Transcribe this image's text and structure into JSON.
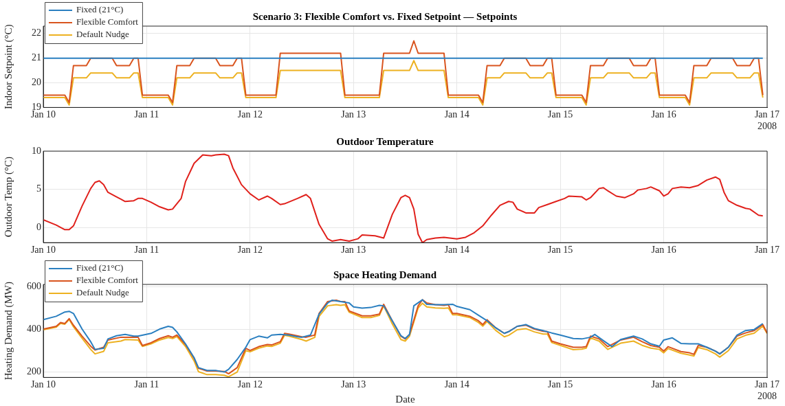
{
  "chart_data": [
    {
      "type": "line",
      "title": "Scenario 3: Flexible Comfort vs. Fixed Setpoint — Setpoints",
      "ylabel": "Indoor Setpoint (°C)",
      "legend": "top left",
      "grid": true,
      "marker": "none",
      "line_style": "solid",
      "xlim": [
        "2008-01-10",
        "2008-01-17"
      ],
      "xticks": [
        {
          "value": "2008-01-10",
          "label": "Jan 10"
        },
        {
          "value": "2008-01-11",
          "label": "Jan 11"
        },
        {
          "value": "2008-01-12",
          "label": "Jan 12"
        },
        {
          "value": "2008-01-13",
          "label": "Jan 13"
        },
        {
          "value": "2008-01-14",
          "label": "Jan 14"
        },
        {
          "value": "2008-01-15",
          "label": "Jan 15"
        },
        {
          "value": "2008-01-16",
          "label": "Jan 16"
        },
        {
          "value": "2008-01-17",
          "label": "Jan 17\n2008"
        }
      ],
      "ylim": [
        19,
        22.3
      ],
      "yticks": [
        19,
        20,
        21,
        22
      ],
      "series": [
        {
          "name": "Fixed (21°C)",
          "color": "#2a7fc0",
          "x": [
            "2008-01-10T00:00",
            "2008-01-16T23:00"
          ],
          "values": [
            21,
            21
          ]
        },
        {
          "name": "Flexible Comfort",
          "color": "#d9541e",
          "x": [
            "2008-01-10T00:00",
            "2008-01-10T05:00",
            "2008-01-10T06:00",
            "2008-01-10T07:00",
            "2008-01-10T10:00",
            "2008-01-10T11:00",
            "2008-01-10T16:00",
            "2008-01-10T17:00",
            "2008-01-10T20:00",
            "2008-01-10T21:00",
            "2008-01-10T22:00",
            "2008-01-10T23:00",
            "2008-01-11T00:00",
            "2008-01-11T05:00",
            "2008-01-11T06:00",
            "2008-01-11T07:00",
            "2008-01-11T10:00",
            "2008-01-11T11:00",
            "2008-01-11T16:00",
            "2008-01-11T17:00",
            "2008-01-11T20:00",
            "2008-01-11T21:00",
            "2008-01-11T22:00",
            "2008-01-11T23:00",
            "2008-01-12T00:00",
            "2008-01-12T06:00",
            "2008-01-12T07:00",
            "2008-01-12T21:00",
            "2008-01-12T22:00",
            "2008-01-13T00:00",
            "2008-01-13T06:00",
            "2008-01-13T07:00",
            "2008-01-13T13:00",
            "2008-01-13T14:00",
            "2008-01-13T15:00",
            "2008-01-13T21:00",
            "2008-01-13T22:00",
            "2008-01-14T00:00",
            "2008-01-14T05:00",
            "2008-01-14T06:00",
            "2008-01-14T07:00",
            "2008-01-14T10:00",
            "2008-01-14T11:00",
            "2008-01-14T16:00",
            "2008-01-14T17:00",
            "2008-01-14T20:00",
            "2008-01-14T21:00",
            "2008-01-14T22:00",
            "2008-01-14T23:00",
            "2008-01-15T00:00",
            "2008-01-15T05:00",
            "2008-01-15T06:00",
            "2008-01-15T07:00",
            "2008-01-15T10:00",
            "2008-01-15T11:00",
            "2008-01-15T16:00",
            "2008-01-15T17:00",
            "2008-01-15T20:00",
            "2008-01-15T21:00",
            "2008-01-15T22:00",
            "2008-01-15T23:00",
            "2008-01-16T00:00",
            "2008-01-16T05:00",
            "2008-01-16T06:00",
            "2008-01-16T07:00",
            "2008-01-16T10:00",
            "2008-01-16T11:00",
            "2008-01-16T16:00",
            "2008-01-16T17:00",
            "2008-01-16T20:00",
            "2008-01-16T21:00",
            "2008-01-16T22:00",
            "2008-01-16T23:00"
          ],
          "values": [
            19.5,
            19.5,
            19.2,
            20.7,
            20.7,
            21,
            21,
            20.7,
            20.7,
            21,
            21,
            19.5,
            19.5,
            19.5,
            19.2,
            20.7,
            20.7,
            21,
            21,
            20.7,
            20.7,
            21,
            21,
            19.5,
            19.5,
            19.5,
            21.2,
            21.2,
            19.5,
            19.5,
            19.5,
            21.2,
            21.2,
            21.7,
            21.2,
            21.2,
            19.5,
            19.5,
            19.5,
            19.2,
            20.7,
            20.7,
            21,
            21,
            20.7,
            20.7,
            21,
            21,
            19.5,
            19.5,
            19.5,
            19.2,
            20.7,
            20.7,
            21,
            21,
            20.7,
            20.7,
            21,
            21,
            19.5,
            19.5,
            19.5,
            19.2,
            20.7,
            20.7,
            21,
            21,
            20.7,
            20.7,
            21,
            21,
            19.5
          ]
        },
        {
          "name": "Default Nudge",
          "color": "#edb120",
          "x": [
            "2008-01-10T00:00",
            "2008-01-10T05:00",
            "2008-01-10T06:00",
            "2008-01-10T07:00",
            "2008-01-10T10:00",
            "2008-01-10T11:00",
            "2008-01-10T16:00",
            "2008-01-10T17:00",
            "2008-01-10T20:00",
            "2008-01-10T21:00",
            "2008-01-10T22:00",
            "2008-01-10T23:00",
            "2008-01-11T00:00",
            "2008-01-11T05:00",
            "2008-01-11T06:00",
            "2008-01-11T07:00",
            "2008-01-11T10:00",
            "2008-01-11T11:00",
            "2008-01-11T16:00",
            "2008-01-11T17:00",
            "2008-01-11T20:00",
            "2008-01-11T21:00",
            "2008-01-11T22:00",
            "2008-01-11T23:00",
            "2008-01-12T00:00",
            "2008-01-12T06:00",
            "2008-01-12T07:00",
            "2008-01-12T21:00",
            "2008-01-12T22:00",
            "2008-01-13T00:00",
            "2008-01-13T06:00",
            "2008-01-13T07:00",
            "2008-01-13T13:00",
            "2008-01-13T14:00",
            "2008-01-13T15:00",
            "2008-01-13T21:00",
            "2008-01-13T22:00",
            "2008-01-14T00:00",
            "2008-01-14T05:00",
            "2008-01-14T06:00",
            "2008-01-14T07:00",
            "2008-01-14T10:00",
            "2008-01-14T11:00",
            "2008-01-14T16:00",
            "2008-01-14T17:00",
            "2008-01-14T20:00",
            "2008-01-14T21:00",
            "2008-01-14T22:00",
            "2008-01-14T23:00",
            "2008-01-15T00:00",
            "2008-01-15T05:00",
            "2008-01-15T06:00",
            "2008-01-15T07:00",
            "2008-01-15T10:00",
            "2008-01-15T11:00",
            "2008-01-15T16:00",
            "2008-01-15T17:00",
            "2008-01-15T20:00",
            "2008-01-15T21:00",
            "2008-01-15T22:00",
            "2008-01-15T23:00",
            "2008-01-16T00:00",
            "2008-01-16T05:00",
            "2008-01-16T06:00",
            "2008-01-16T07:00",
            "2008-01-16T10:00",
            "2008-01-16T11:00",
            "2008-01-16T16:00",
            "2008-01-16T17:00",
            "2008-01-16T20:00",
            "2008-01-16T21:00",
            "2008-01-16T22:00",
            "2008-01-16T23:00"
          ],
          "values": [
            19.4,
            19.4,
            19.1,
            20.2,
            20.2,
            20.4,
            20.4,
            20.2,
            20.2,
            20.4,
            20.4,
            19.4,
            19.4,
            19.4,
            19.1,
            20.2,
            20.2,
            20.4,
            20.4,
            20.2,
            20.2,
            20.4,
            20.4,
            19.4,
            19.4,
            19.4,
            20.5,
            20.5,
            19.4,
            19.4,
            19.4,
            20.5,
            20.5,
            20.9,
            20.5,
            20.5,
            19.4,
            19.4,
            19.4,
            19.1,
            20.2,
            20.2,
            20.4,
            20.4,
            20.2,
            20.2,
            20.4,
            20.4,
            19.4,
            19.4,
            19.4,
            19.1,
            20.2,
            20.2,
            20.4,
            20.4,
            20.2,
            20.2,
            20.4,
            20.4,
            19.4,
            19.4,
            19.4,
            19.1,
            20.2,
            20.2,
            20.4,
            20.4,
            20.2,
            20.2,
            20.4,
            20.4,
            19.4
          ]
        }
      ]
    },
    {
      "type": "line",
      "title": "Outdoor Temperature",
      "ylabel": "Outdoor Temp (°C)",
      "grid": true,
      "marker": "none",
      "line_style": "solid",
      "xlim": [
        "2008-01-10",
        "2008-01-17"
      ],
      "xticks": [
        {
          "value": "2008-01-10",
          "label": "Jan 10"
        },
        {
          "value": "2008-01-11",
          "label": "Jan 11"
        },
        {
          "value": "2008-01-12",
          "label": "Jan 12"
        },
        {
          "value": "2008-01-13",
          "label": "Jan 13"
        },
        {
          "value": "2008-01-14",
          "label": "Jan 14"
        },
        {
          "value": "2008-01-15",
          "label": "Jan 15"
        },
        {
          "value": "2008-01-16",
          "label": "Jan 16"
        },
        {
          "value": "2008-01-17",
          "label": "Jan 17"
        }
      ],
      "ylim": [
        -2,
        10
      ],
      "yticks": [
        0,
        5,
        10
      ],
      "series": [
        {
          "color": "#e0201b",
          "x": [
            "2008-01-10T00:00",
            "2008-01-10T03:00",
            "2008-01-10T05:00",
            "2008-01-10T06:00",
            "2008-01-10T07:00",
            "2008-01-10T09:00",
            "2008-01-10T11:00",
            "2008-01-10T12:00",
            "2008-01-10T13:00",
            "2008-01-10T14:00",
            "2008-01-10T15:00",
            "2008-01-10T17:00",
            "2008-01-10T18:00",
            "2008-01-10T19:00",
            "2008-01-10T21:00",
            "2008-01-10T22:00",
            "2008-01-10T23:00",
            "2008-01-11T01:00",
            "2008-01-11T03:00",
            "2008-01-11T05:00",
            "2008-01-11T06:00",
            "2008-01-11T08:00",
            "2008-01-11T09:00",
            "2008-01-11T11:00",
            "2008-01-11T13:00",
            "2008-01-11T15:00",
            "2008-01-11T16:00",
            "2008-01-11T18:00",
            "2008-01-11T19:00",
            "2008-01-11T20:00",
            "2008-01-11T22:00",
            "2008-01-12T00:00",
            "2008-01-12T02:00",
            "2008-01-12T04:00",
            "2008-01-12T05:00",
            "2008-01-12T07:00",
            "2008-01-12T08:00",
            "2008-01-12T11:00",
            "2008-01-12T13:00",
            "2008-01-12T14:00",
            "2008-01-12T16:00",
            "2008-01-12T18:00",
            "2008-01-12T19:00",
            "2008-01-12T21:00",
            "2008-01-12T23:00",
            "2008-01-13T01:00",
            "2008-01-13T02:00",
            "2008-01-13T05:00",
            "2008-01-13T07:00",
            "2008-01-13T09:00",
            "2008-01-13T11:00",
            "2008-01-13T12:00",
            "2008-01-13T13:00",
            "2008-01-13T14:00",
            "2008-01-13T15:00",
            "2008-01-13T16:00",
            "2008-01-13T17:00",
            "2008-01-13T19:00",
            "2008-01-13T21:00",
            "2008-01-14T00:00",
            "2008-01-14T02:00",
            "2008-01-14T04:00",
            "2008-01-14T06:00",
            "2008-01-14T08:00",
            "2008-01-14T10:00",
            "2008-01-14T12:00",
            "2008-01-14T13:00",
            "2008-01-14T14:00",
            "2008-01-14T16:00",
            "2008-01-14T18:00",
            "2008-01-14T19:00",
            "2008-01-14T21:00",
            "2008-01-14T23:00",
            "2008-01-15T01:00",
            "2008-01-15T02:00",
            "2008-01-15T05:00",
            "2008-01-15T06:00",
            "2008-01-15T07:00",
            "2008-01-15T09:00",
            "2008-01-15T10:00",
            "2008-01-15T11:00",
            "2008-01-15T13:00",
            "2008-01-15T15:00",
            "2008-01-15T17:00",
            "2008-01-15T18:00",
            "2008-01-15T20:00",
            "2008-01-15T21:00",
            "2008-01-15T23:00",
            "2008-01-16T00:00",
            "2008-01-16T01:00",
            "2008-01-16T02:00",
            "2008-01-16T04:00",
            "2008-01-16T06:00",
            "2008-01-16T08:00",
            "2008-01-16T10:00",
            "2008-01-16T12:00",
            "2008-01-16T13:00",
            "2008-01-16T14:00",
            "2008-01-16T15:00",
            "2008-01-16T17:00",
            "2008-01-16T19:00",
            "2008-01-16T20:00",
            "2008-01-16T22:00",
            "2008-01-16T23:00"
          ],
          "values": [
            1,
            0.3,
            -0.3,
            -0.3,
            0.2,
            2.8,
            5.1,
            5.9,
            6.1,
            5.6,
            4.6,
            4,
            3.7,
            3.4,
            3.5,
            3.8,
            3.8,
            3.3,
            2.7,
            2.3,
            2.4,
            3.8,
            6,
            8.4,
            9.5,
            9.4,
            9.5,
            9.6,
            9.4,
            7.8,
            5.6,
            4.4,
            3.6,
            4.1,
            3.8,
            3,
            3.1,
            3.8,
            4.3,
            3.8,
            0.4,
            -1.5,
            -1.8,
            -1.6,
            -1.8,
            -1.5,
            -1,
            -1.1,
            -1.4,
            1.7,
            3.9,
            4.2,
            3.9,
            2.4,
            -0.9,
            -2,
            -1.6,
            -1.4,
            -1.3,
            -1.5,
            -1.3,
            -0.7,
            0.2,
            1.6,
            2.9,
            3.4,
            3.3,
            2.4,
            1.9,
            1.9,
            2.6,
            3,
            3.4,
            3.8,
            4.1,
            4,
            3.6,
            3.9,
            5.1,
            5.2,
            4.8,
            4.1,
            3.9,
            4.4,
            4.9,
            5.1,
            5.3,
            4.8,
            4.1,
            4.4,
            5.1,
            5.3,
            5.2,
            5.5,
            6.2,
            6.6,
            6.3,
            4.6,
            3.5,
            2.9,
            2.5,
            2.4,
            1.6,
            1.5
          ]
        }
      ]
    },
    {
      "type": "line",
      "title": "Space Heating Demand",
      "xlabel": "Date",
      "ylabel": "Heating Demand (MW)",
      "legend": "top left",
      "grid": true,
      "marker": "none",
      "line_style": "solid",
      "xlim": [
        "2008-01-10",
        "2008-01-17"
      ],
      "xticks": [
        {
          "value": "2008-01-10",
          "label": "Jan 10"
        },
        {
          "value": "2008-01-11",
          "label": "Jan 11"
        },
        {
          "value": "2008-01-12",
          "label": "Jan 12"
        },
        {
          "value": "2008-01-13",
          "label": "Jan 13"
        },
        {
          "value": "2008-01-14",
          "label": "Jan 14"
        },
        {
          "value": "2008-01-15",
          "label": "Jan 15"
        },
        {
          "value": "2008-01-16",
          "label": "Jan 16"
        },
        {
          "value": "2008-01-17",
          "label": "Jan 17\n2008"
        }
      ],
      "ylim": [
        175,
        610
      ],
      "yticks": [
        200,
        400,
        600
      ],
      "series": [
        {
          "name": "Fixed (21°C)",
          "color": "#2a7fc0",
          "x": [
            "2008-01-10T00:00",
            "2008-01-10T03:00",
            "2008-01-10T05:00",
            "2008-01-10T06:00",
            "2008-01-10T07:00",
            "2008-01-10T09:00",
            "2008-01-10T11:00",
            "2008-01-10T12:00",
            "2008-01-10T14:00",
            "2008-01-10T15:00",
            "2008-01-10T17:00",
            "2008-01-10T19:00",
            "2008-01-10T21:00",
            "2008-01-10T22:00",
            "2008-01-11T01:00",
            "2008-01-11T03:00",
            "2008-01-11T05:00",
            "2008-01-11T06:00",
            "2008-01-11T07:00",
            "2008-01-11T09:00",
            "2008-01-11T11:00",
            "2008-01-11T12:00",
            "2008-01-11T14:00",
            "2008-01-11T16:00",
            "2008-01-11T18:00",
            "2008-01-11T19:00",
            "2008-01-11T21:00",
            "2008-01-11T23:00",
            "2008-01-12T00:00",
            "2008-01-12T02:00",
            "2008-01-12T04:00",
            "2008-01-12T05:00",
            "2008-01-12T07:00",
            "2008-01-12T09:00",
            "2008-01-12T11:00",
            "2008-01-12T12:00",
            "2008-01-12T14:00",
            "2008-01-12T16:00",
            "2008-01-12T18:00",
            "2008-01-12T19:00",
            "2008-01-12T21:00",
            "2008-01-12T23:00",
            "2008-01-13T00:00",
            "2008-01-13T02:00",
            "2008-01-13T04:00",
            "2008-01-13T06:00",
            "2008-01-13T07:00",
            "2008-01-13T09:00",
            "2008-01-13T11:00",
            "2008-01-13T12:00",
            "2008-01-13T13:00",
            "2008-01-13T14:00",
            "2008-01-13T16:00",
            "2008-01-13T17:00",
            "2008-01-13T19:00",
            "2008-01-13T21:00",
            "2008-01-13T23:00",
            "2008-01-14T00:00",
            "2008-01-14T03:00",
            "2008-01-14T05:00",
            "2008-01-14T07:00",
            "2008-01-14T09:00",
            "2008-01-14T11:00",
            "2008-01-14T12:00",
            "2008-01-14T14:00",
            "2008-01-14T16:00",
            "2008-01-14T18:00",
            "2008-01-14T20:00",
            "2008-01-14T22:00",
            "2008-01-15T00:00",
            "2008-01-15T03:00",
            "2008-01-15T05:00",
            "2008-01-15T07:00",
            "2008-01-15T08:00",
            "2008-01-15T10:00",
            "2008-01-15T12:00",
            "2008-01-15T14:00",
            "2008-01-15T17:00",
            "2008-01-15T19:00",
            "2008-01-15T21:00",
            "2008-01-15T23:00",
            "2008-01-16T00:00",
            "2008-01-16T02:00",
            "2008-01-16T04:00",
            "2008-01-16T06:00",
            "2008-01-16T08:00",
            "2008-01-16T10:00",
            "2008-01-16T12:00",
            "2008-01-16T13:00",
            "2008-01-16T15:00",
            "2008-01-16T17:00",
            "2008-01-16T19:00",
            "2008-01-16T21:00",
            "2008-01-16T23:00"
          ],
          "values": [
            445,
            461,
            481,
            484,
            474,
            401,
            342,
            306,
            311,
            355,
            370,
            376,
            368,
            368,
            381,
            401,
            414,
            409,
            388,
            332,
            267,
            221,
            208,
            208,
            200,
            213,
            259,
            316,
            352,
            368,
            360,
            373,
            376,
            373,
            365,
            363,
            373,
            471,
            523,
            536,
            530,
            523,
            505,
            499,
            502,
            512,
            510,
            440,
            370,
            357,
            376,
            510,
            538,
            517,
            515,
            515,
            517,
            507,
            492,
            466,
            440,
            407,
            381,
            389,
            414,
            422,
            404,
            394,
            383,
            373,
            357,
            355,
            363,
            376,
            347,
            319,
            352,
            368,
            355,
            332,
            321,
            350,
            360,
            334,
            332,
            332,
            316,
            298,
            285,
            316,
            373,
            394,
            399,
            427
          ]
        },
        {
          "name": "Flexible Comfort",
          "color": "#d9541e",
          "x": [
            "2008-01-10T00:00",
            "2008-01-10T03:00",
            "2008-01-10T04:00",
            "2008-01-10T05:00",
            "2008-01-10T06:00",
            "2008-01-10T07:00",
            "2008-01-10T09:00",
            "2008-01-10T11:00",
            "2008-01-10T12:00",
            "2008-01-10T14:00",
            "2008-01-10T15:00",
            "2008-01-10T18:00",
            "2008-01-10T19:00",
            "2008-01-10T22:00",
            "2008-01-10T23:00",
            "2008-01-11T01:00",
            "2008-01-11T03:00",
            "2008-01-11T05:00",
            "2008-01-11T06:00",
            "2008-01-11T07:00",
            "2008-01-11T09:00",
            "2008-01-11T11:00",
            "2008-01-11T12:00",
            "2008-01-11T14:00",
            "2008-01-11T16:00",
            "2008-01-11T18:00",
            "2008-01-11T19:00",
            "2008-01-11T21:00",
            "2008-01-11T23:00",
            "2008-01-12T00:00",
            "2008-01-12T02:00",
            "2008-01-12T04:00",
            "2008-01-12T05:00",
            "2008-01-12T07:00",
            "2008-01-12T08:00",
            "2008-01-12T09:00",
            "2008-01-12T12:00",
            "2008-01-12T13:00",
            "2008-01-12T15:00",
            "2008-01-12T16:00",
            "2008-01-12T18:00",
            "2008-01-12T20:00",
            "2008-01-12T21:00",
            "2008-01-12T22:00",
            "2008-01-12T23:00",
            "2008-01-13T02:00",
            "2008-01-13T04:00",
            "2008-01-13T06:00",
            "2008-01-13T07:00",
            "2008-01-13T09:00",
            "2008-01-13T11:00",
            "2008-01-13T12:00",
            "2008-01-13T13:00",
            "2008-01-13T15:00",
            "2008-01-13T16:00",
            "2008-01-13T17:00",
            "2008-01-13T19:00",
            "2008-01-13T21:00",
            "2008-01-13T22:00",
            "2008-01-13T23:00",
            "2008-01-14T00:00",
            "2008-01-14T03:00",
            "2008-01-14T05:00",
            "2008-01-14T06:00",
            "2008-01-14T07:00",
            "2008-01-14T09:00",
            "2008-01-14T11:00",
            "2008-01-14T12:00",
            "2008-01-14T14:00",
            "2008-01-14T16:00",
            "2008-01-14T18:00",
            "2008-01-14T20:00",
            "2008-01-14T21:00",
            "2008-01-14T22:00",
            "2008-01-15T00:00",
            "2008-01-15T03:00",
            "2008-01-15T05:00",
            "2008-01-15T06:00",
            "2008-01-15T07:00",
            "2008-01-15T09:00",
            "2008-01-15T11:00",
            "2008-01-15T14:00",
            "2008-01-15T17:00",
            "2008-01-15T19:00",
            "2008-01-15T21:00",
            "2008-01-15T23:00",
            "2008-01-16T00:00",
            "2008-01-16T01:00",
            "2008-01-16T04:00",
            "2008-01-16T06:00",
            "2008-01-16T07:00",
            "2008-01-16T08:00",
            "2008-01-16T10:00",
            "2008-01-16T12:00",
            "2008-01-16T13:00",
            "2008-01-16T15:00",
            "2008-01-16T17:00",
            "2008-01-16T19:00",
            "2008-01-16T21:00",
            "2008-01-16T23:00",
            "2008-01-17T00:00"
          ],
          "values": [
            401,
            414,
            432,
            427,
            450,
            419,
            368,
            321,
            303,
            316,
            350,
            363,
            363,
            363,
            324,
            337,
            357,
            370,
            363,
            373,
            329,
            265,
            218,
            205,
            205,
            203,
            192,
            221,
            311,
            301,
            319,
            329,
            327,
            342,
            381,
            378,
            365,
            363,
            373,
            474,
            530,
            536,
            530,
            530,
            486,
            463,
            463,
            471,
            517,
            440,
            368,
            355,
            376,
            510,
            538,
            523,
            515,
            512,
            515,
            474,
            474,
            461,
            440,
            422,
            445,
            407,
            381,
            389,
            414,
            419,
            401,
            391,
            389,
            345,
            332,
            316,
            316,
            319,
            368,
            355,
            319,
            350,
            363,
            342,
            324,
            316,
            298,
            319,
            296,
            290,
            283,
            324,
            316,
            298,
            285,
            316,
            368,
            383,
            394,
            422,
            383
          ]
        },
        {
          "name": "Default Nudge",
          "color": "#edb120",
          "x": [
            "2008-01-10T00:00",
            "2008-01-10T03:00",
            "2008-01-10T04:00",
            "2008-01-10T05:00",
            "2008-01-10T06:00",
            "2008-01-10T07:00",
            "2008-01-10T09:00",
            "2008-01-10T11:00",
            "2008-01-10T12:00",
            "2008-01-10T14:00",
            "2008-01-10T15:00",
            "2008-01-10T18:00",
            "2008-01-10T19:00",
            "2008-01-10T22:00",
            "2008-01-10T23:00",
            "2008-01-11T01:00",
            "2008-01-11T03:00",
            "2008-01-11T05:00",
            "2008-01-11T06:00",
            "2008-01-11T07:00",
            "2008-01-11T09:00",
            "2008-01-11T11:00",
            "2008-01-11T12:00",
            "2008-01-11T14:00",
            "2008-01-11T16:00",
            "2008-01-11T18:00",
            "2008-01-11T19:00",
            "2008-01-11T21:00",
            "2008-01-11T23:00",
            "2008-01-12T00:00",
            "2008-01-12T02:00",
            "2008-01-12T04:00",
            "2008-01-12T05:00",
            "2008-01-12T07:00",
            "2008-01-12T08:00",
            "2008-01-12T09:00",
            "2008-01-12T12:00",
            "2008-01-12T13:00",
            "2008-01-12T15:00",
            "2008-01-12T16:00",
            "2008-01-12T18:00",
            "2008-01-12T20:00",
            "2008-01-12T21:00",
            "2008-01-12T22:00",
            "2008-01-12T23:00",
            "2008-01-13T02:00",
            "2008-01-13T04:00",
            "2008-01-13T06:00",
            "2008-01-13T07:00",
            "2008-01-13T09:00",
            "2008-01-13T11:00",
            "2008-01-13T12:00",
            "2008-01-13T13:00",
            "2008-01-13T15:00",
            "2008-01-13T16:00",
            "2008-01-13T17:00",
            "2008-01-13T19:00",
            "2008-01-13T21:00",
            "2008-01-13T22:00",
            "2008-01-13T23:00",
            "2008-01-14T00:00",
            "2008-01-14T03:00",
            "2008-01-14T05:00",
            "2008-01-14T06:00",
            "2008-01-14T07:00",
            "2008-01-14T09:00",
            "2008-01-14T11:00",
            "2008-01-14T12:00",
            "2008-01-14T14:00",
            "2008-01-14T16:00",
            "2008-01-14T18:00",
            "2008-01-14T20:00",
            "2008-01-14T21:00",
            "2008-01-14T22:00",
            "2008-01-15T00:00",
            "2008-01-15T03:00",
            "2008-01-15T05:00",
            "2008-01-15T06:00",
            "2008-01-15T07:00",
            "2008-01-15T09:00",
            "2008-01-15T11:00",
            "2008-01-15T14:00",
            "2008-01-15T17:00",
            "2008-01-15T19:00",
            "2008-01-15T21:00",
            "2008-01-15T23:00",
            "2008-01-16T00:00",
            "2008-01-16T01:00",
            "2008-01-16T04:00",
            "2008-01-16T06:00",
            "2008-01-16T07:00",
            "2008-01-16T08:00",
            "2008-01-16T10:00",
            "2008-01-16T12:00",
            "2008-01-16T13:00",
            "2008-01-16T15:00",
            "2008-01-16T17:00",
            "2008-01-16T19:00",
            "2008-01-16T21:00",
            "2008-01-16T23:00",
            "2008-01-17T00:00"
          ],
          "values": [
            398,
            410,
            428,
            424,
            446,
            412,
            358,
            306,
            285,
            297,
            337,
            345,
            352,
            350,
            320,
            332,
            350,
            362,
            357,
            366,
            320,
            252,
            202,
            188,
            188,
            185,
            178,
            200,
            300,
            295,
            312,
            322,
            320,
            335,
            372,
            368,
            352,
            345,
            362,
            460,
            510,
            515,
            512,
            515,
            480,
            455,
            455,
            465,
            510,
            425,
            352,
            345,
            368,
            500,
            522,
            505,
            500,
            498,
            500,
            468,
            468,
            455,
            432,
            415,
            436,
            395,
            365,
            372,
            398,
            403,
            388,
            378,
            378,
            338,
            325,
            305,
            307,
            312,
            360,
            345,
            306,
            335,
            345,
            325,
            312,
            306,
            290,
            310,
            288,
            280,
            275,
            315,
            305,
            285,
            270,
            300,
            355,
            372,
            382,
            415,
            380
          ]
        }
      ]
    }
  ]
}
